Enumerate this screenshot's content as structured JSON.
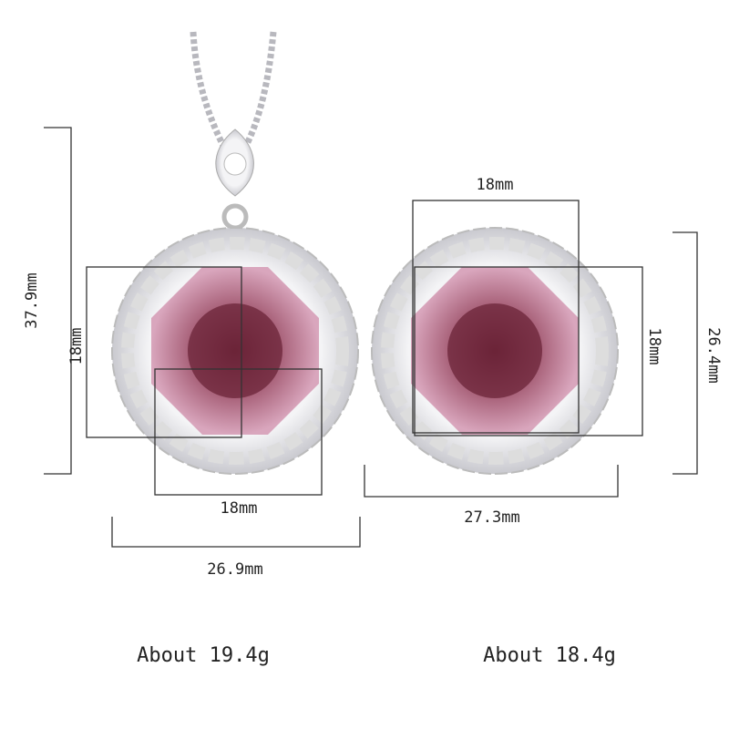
{
  "pendant": {
    "height": "37.9mm",
    "box_height": "18mm",
    "box_width": "18mm",
    "width": "26.9mm",
    "weight": "About 19.4g"
  },
  "earring": {
    "box_width": "18mm",
    "box_height": "18mm",
    "height": "26.4mm",
    "width": "27.3mm",
    "weight": "About 18.4g"
  }
}
